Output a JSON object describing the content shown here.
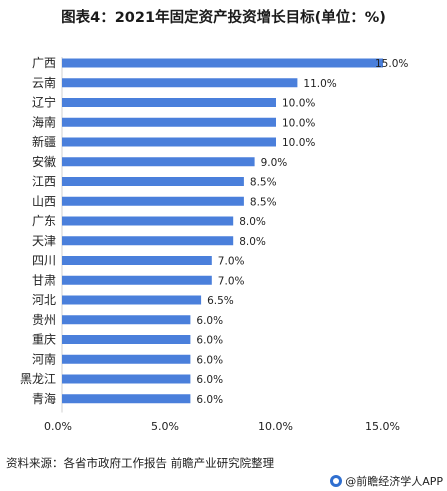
{
  "title": "图表4：2021年固定资产投资增长目标(单位：%)",
  "source": "资料来源：各省市政府工作报告 前瞻产业研究院整理",
  "brand": "@前瞻经济学人APP",
  "colors": {
    "bar": "#4a7fdb",
    "axis": "#d0d0d0"
  },
  "chart_data": {
    "type": "bar",
    "orientation": "horizontal",
    "categories": [
      "广西",
      "云南",
      "辽宁",
      "海南",
      "新疆",
      "安徽",
      "江西",
      "山西",
      "广东",
      "天津",
      "四川",
      "甘肃",
      "河北",
      "贵州",
      "重庆",
      "河南",
      "黑龙江",
      "青海"
    ],
    "values": [
      15.0,
      11.0,
      10.0,
      10.0,
      10.0,
      9.0,
      8.5,
      8.5,
      8.0,
      8.0,
      7.0,
      7.0,
      6.5,
      6.0,
      6.0,
      6.0,
      6.0,
      6.0
    ],
    "value_labels": [
      "15.0%",
      "11.0%",
      "10.0%",
      "10.0%",
      "10.0%",
      "9.0%",
      "8.5%",
      "8.5%",
      "8.0%",
      "8.0%",
      "7.0%",
      "7.0%",
      "6.5%",
      "6.0%",
      "6.0%",
      "6.0%",
      "6.0%",
      "6.0%"
    ],
    "xticks": [
      "0.0%",
      "5.0%",
      "10.0%",
      "15.0%"
    ],
    "xlim": [
      0,
      15
    ],
    "grid": false
  }
}
